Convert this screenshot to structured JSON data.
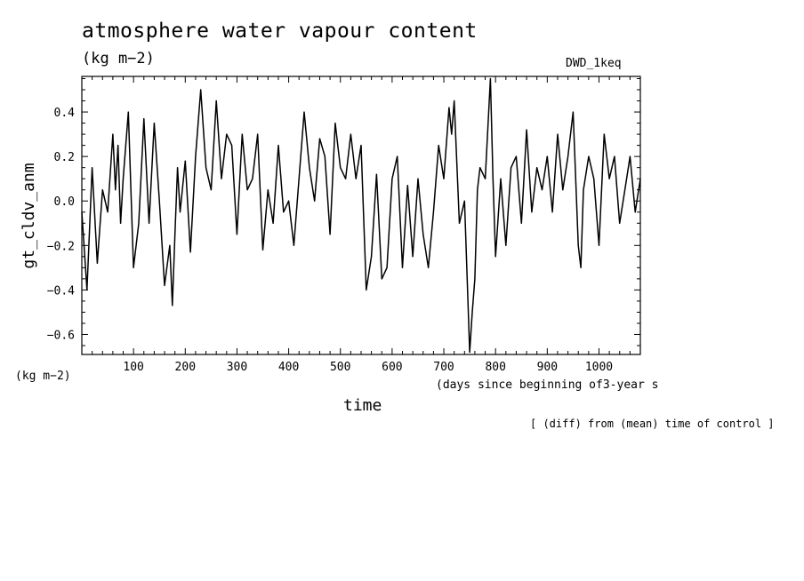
{
  "chart_data": {
    "type": "line",
    "title": "atmosphere water vapour content",
    "units_label": "(kg m−2)",
    "run_label": "DWD_1keq",
    "ylabel": "gt_cldv_anm",
    "y_units_label": "(kg m−2)",
    "xlabel": "time",
    "x_units_label": "(days since beginning of3-year s",
    "note": "[ (diff) from (mean) time of control ]",
    "xlim": [
      0,
      1080
    ],
    "ylim": [
      -0.69,
      0.56
    ],
    "xticks": [
      100,
      200,
      300,
      400,
      500,
      600,
      700,
      800,
      900,
      1000
    ],
    "yticks": [
      -0.6,
      -0.4,
      -0.2,
      0.0,
      0.2,
      0.4
    ],
    "ytick_labels": [
      "−0.6",
      "−0.4",
      "−0.2",
      "0.0",
      "0.2",
      "0.4"
    ],
    "grid": false,
    "series": [
      {
        "name": "gt_cldv_anm",
        "color": "#000000",
        "x": [
          0,
          10,
          20,
          30,
          40,
          50,
          60,
          65,
          70,
          75,
          80,
          90,
          100,
          110,
          120,
          130,
          140,
          150,
          160,
          170,
          175,
          180,
          185,
          190,
          200,
          210,
          220,
          230,
          240,
          250,
          260,
          270,
          280,
          290,
          300,
          310,
          320,
          330,
          340,
          350,
          360,
          370,
          380,
          390,
          400,
          410,
          420,
          430,
          440,
          450,
          460,
          470,
          480,
          490,
          500,
          510,
          520,
          530,
          540,
          550,
          560,
          570,
          580,
          590,
          600,
          610,
          620,
          630,
          640,
          650,
          660,
          670,
          680,
          690,
          700,
          710,
          715,
          720,
          730,
          740,
          750,
          755,
          760,
          765,
          770,
          780,
          790,
          795,
          800,
          810,
          820,
          830,
          840,
          850,
          860,
          870,
          880,
          890,
          900,
          910,
          920,
          930,
          940,
          950,
          960,
          965,
          970,
          980,
          990,
          1000,
          1010,
          1020,
          1030,
          1040,
          1050,
          1060,
          1070,
          1080
        ],
        "values": [
          -0.05,
          -0.4,
          0.15,
          -0.28,
          0.05,
          -0.05,
          0.3,
          0.05,
          0.25,
          -0.1,
          0.1,
          0.4,
          -0.3,
          -0.1,
          0.37,
          -0.1,
          0.35,
          0.0,
          -0.38,
          -0.2,
          -0.47,
          -0.15,
          0.15,
          -0.05,
          0.18,
          -0.23,
          0.2,
          0.5,
          0.15,
          0.05,
          0.45,
          0.1,
          0.3,
          0.25,
          -0.15,
          0.3,
          0.05,
          0.1,
          0.3,
          -0.22,
          0.05,
          -0.1,
          0.25,
          -0.05,
          0.0,
          -0.2,
          0.1,
          0.4,
          0.15,
          0.0,
          0.28,
          0.2,
          -0.15,
          0.35,
          0.15,
          0.1,
          0.3,
          0.1,
          0.25,
          -0.4,
          -0.25,
          0.12,
          -0.35,
          -0.3,
          0.1,
          0.2,
          -0.3,
          0.07,
          -0.25,
          0.1,
          -0.15,
          -0.3,
          -0.05,
          0.25,
          0.1,
          0.42,
          0.3,
          0.45,
          -0.1,
          0.0,
          -0.68,
          -0.5,
          -0.35,
          0.05,
          0.15,
          0.1,
          0.55,
          0.1,
          -0.25,
          0.1,
          -0.2,
          0.15,
          0.2,
          -0.1,
          0.32,
          -0.05,
          0.15,
          0.05,
          0.2,
          -0.05,
          0.3,
          0.05,
          0.2,
          0.4,
          -0.2,
          -0.3,
          0.05,
          0.2,
          0.1,
          -0.2,
          0.3,
          0.1,
          0.2,
          -0.1,
          0.05,
          0.2,
          -0.05,
          0.1
        ]
      }
    ]
  }
}
